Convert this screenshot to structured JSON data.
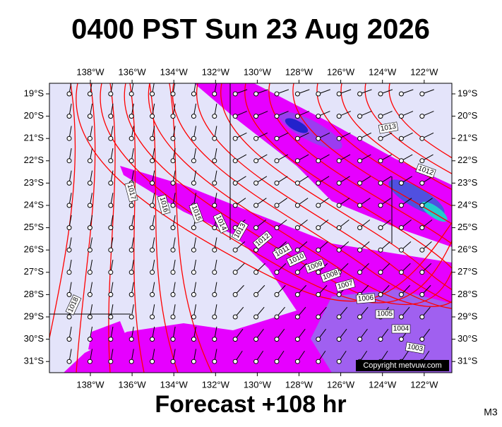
{
  "title": "0400 PST Sun 23 Aug 2026",
  "footer": "Forecast +108 hr",
  "model": "M3",
  "copyright": "Copyright metvuw.com",
  "lon_labels": [
    "138°W",
    "136°W",
    "134°W",
    "132°W",
    "130°W",
    "128°W",
    "126°W",
    "124°W",
    "122°W"
  ],
  "lat_labels": [
    "19°S",
    "20°S",
    "21°S",
    "22°S",
    "23°S",
    "24°S",
    "25°S",
    "26°S",
    "27°S",
    "28°S",
    "29°S",
    "30°S",
    "31°S"
  ],
  "isobar_labels": [
    "1013",
    "1012",
    "1017",
    "1016",
    "1015",
    "1014",
    "1013",
    "1012",
    "1011",
    "1010",
    "1009",
    "1008",
    "1007",
    "1006",
    "1005",
    "1004",
    "1003",
    "1018"
  ]
}
